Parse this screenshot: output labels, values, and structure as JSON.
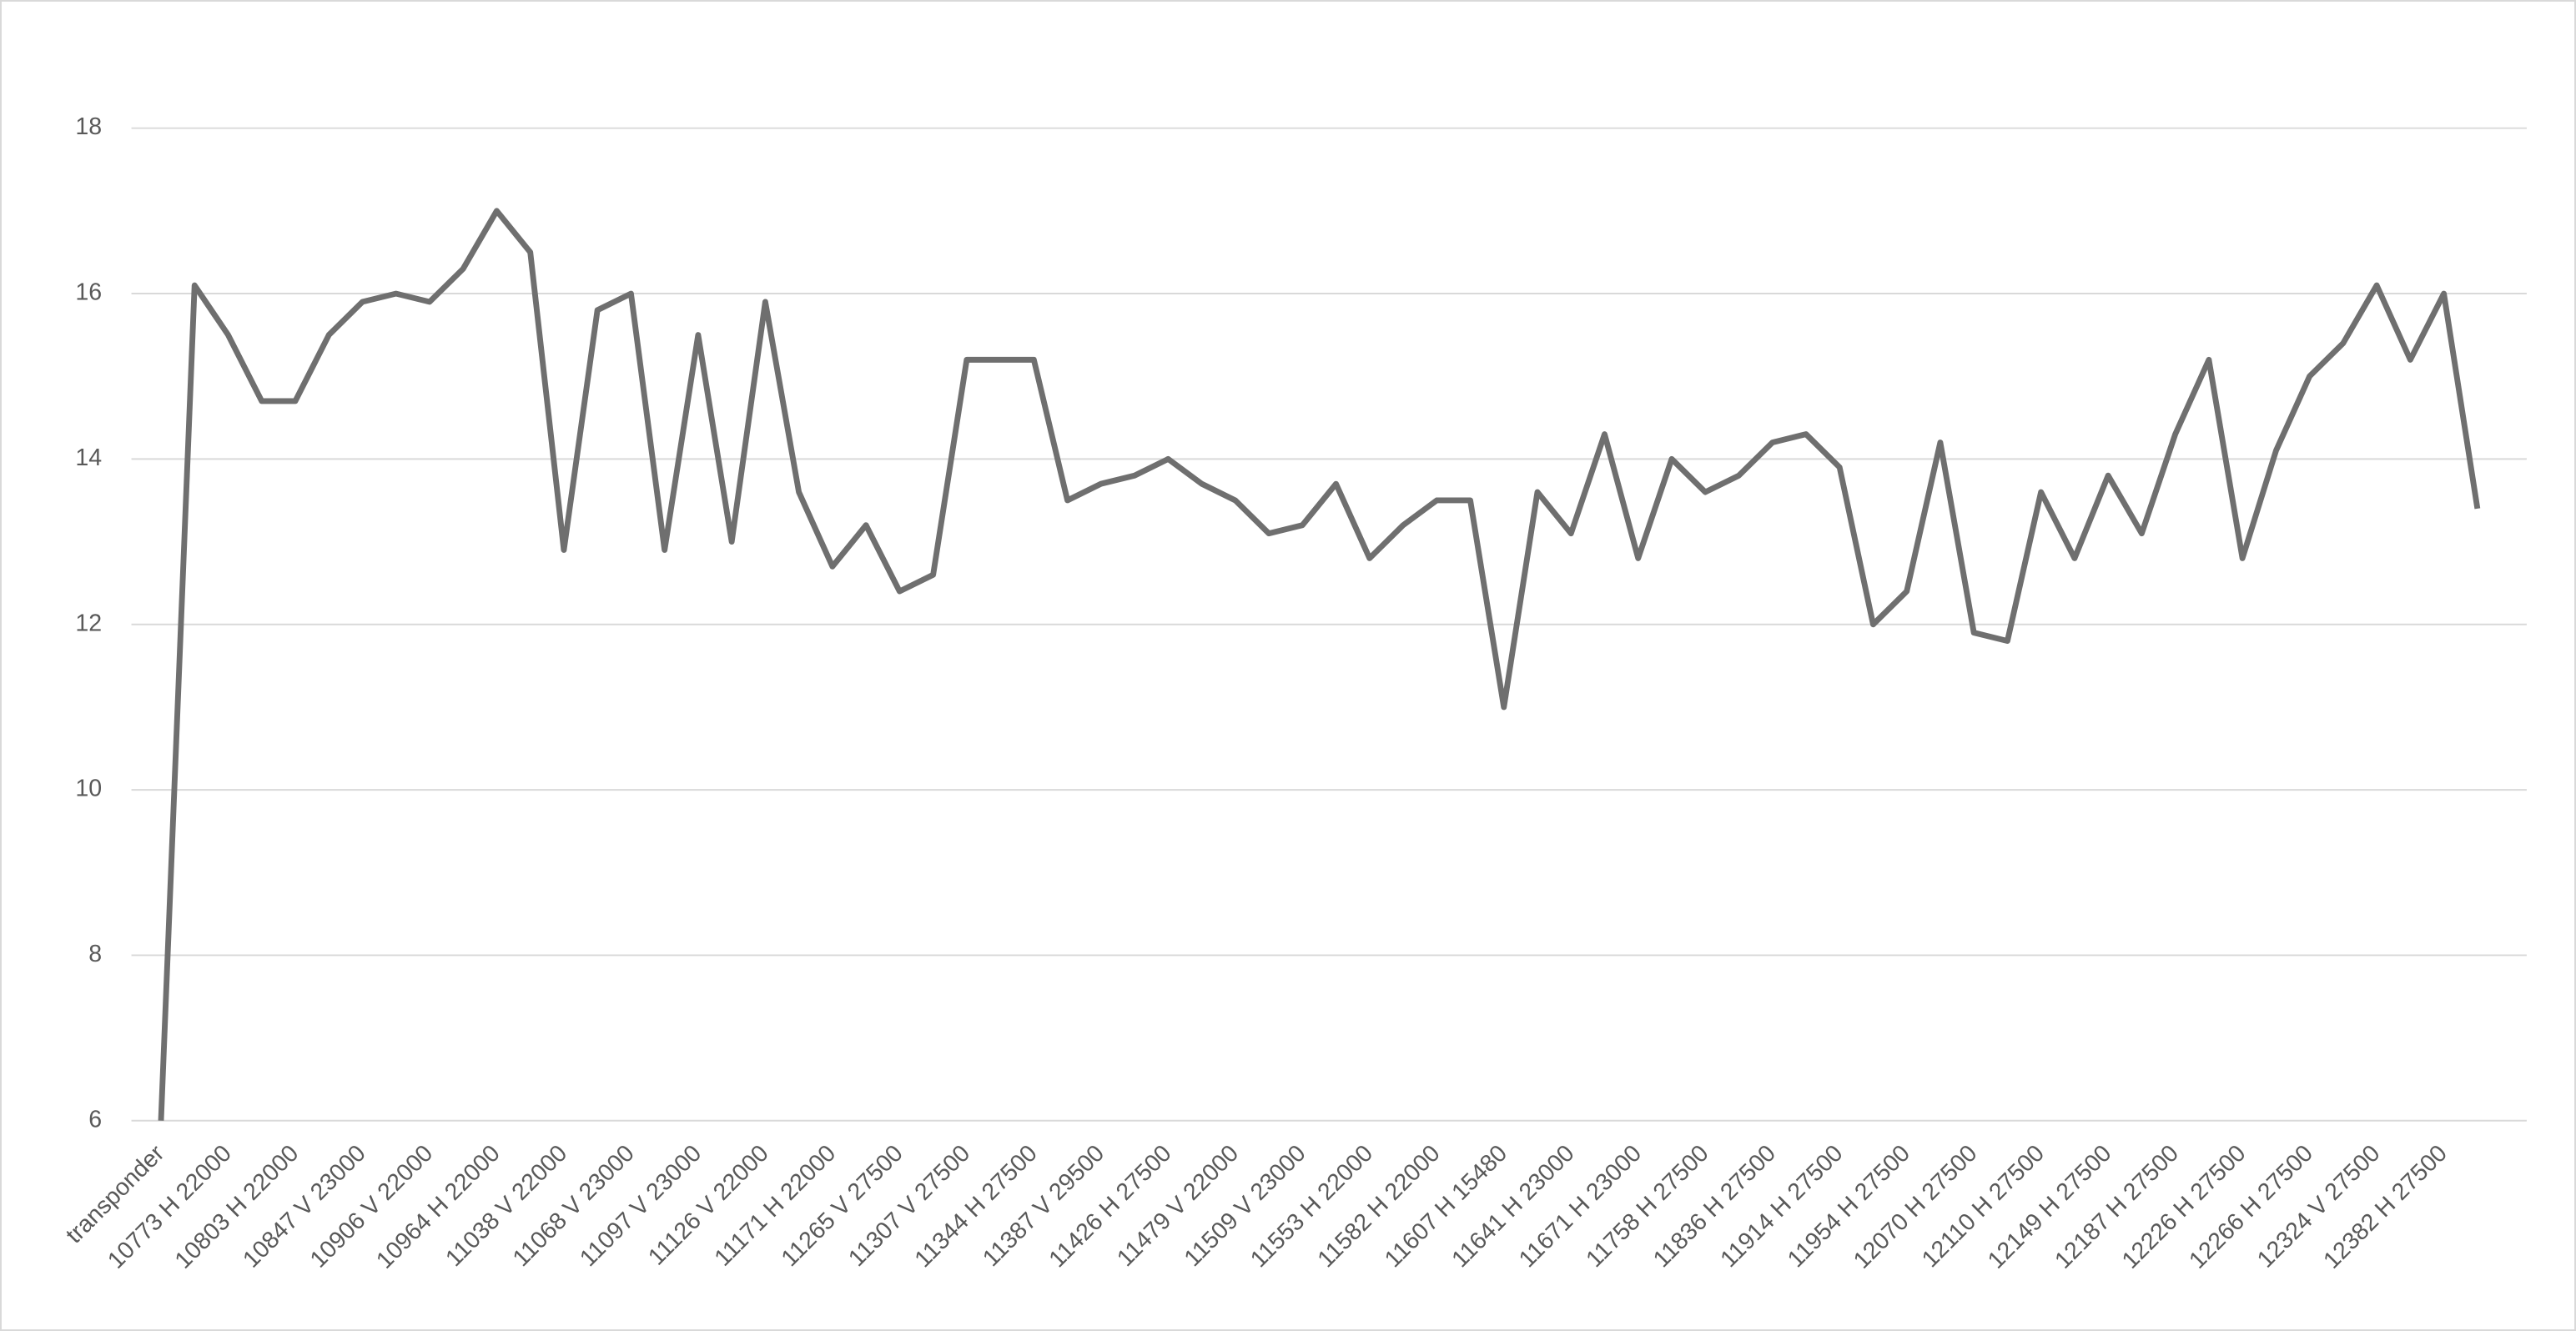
{
  "chart_data": {
    "type": "line",
    "categories": [
      "transponder",
      null,
      "10773 H  22000",
      null,
      "10803 H  22000",
      null,
      "10847 V 23000",
      null,
      "10906 V 22000",
      null,
      "10964 H  22000",
      null,
      "11038 V 22000",
      null,
      "11068 V 23000",
      null,
      "11097 V 23000",
      null,
      "11126 V 22000",
      null,
      "11171 H  22000",
      null,
      "11265 V 27500",
      null,
      "11307 V 27500",
      null,
      "11344 H  27500",
      null,
      "11387 V 29500",
      null,
      "11426 H  27500",
      null,
      "11479 V 22000",
      null,
      "11509 V 23000",
      null,
      "11553 H  22000",
      null,
      "11582 H  22000",
      null,
      "11607 H  15480",
      null,
      "11641 H  23000",
      null,
      "11671 H  23000",
      null,
      "11758 H  27500",
      null,
      "11836 H  27500",
      null,
      "11914 H  27500",
      null,
      "11954 H  27500",
      null,
      "12070 H  27500",
      null,
      "12110 H  27500",
      null,
      "12149 H  27500",
      null,
      "12187 H  27500",
      null,
      "12226 H  27500",
      null,
      "12266 H  27500",
      null,
      "12324 V 27500",
      null,
      "12382 H  27500",
      null
    ],
    "values": [
      6,
      16.1,
      15.5,
      14.7,
      14.7,
      15.5,
      15.9,
      16.0,
      15.9,
      16.3,
      17.0,
      16.5,
      12.9,
      15.8,
      16.0,
      12.9,
      15.5,
      13.0,
      15.9,
      13.6,
      12.7,
      13.2,
      12.4,
      12.6,
      15.2,
      15.2,
      15.2,
      13.5,
      13.7,
      13.8,
      14.0,
      13.7,
      13.5,
      13.1,
      13.2,
      13.7,
      12.8,
      13.2,
      13.5,
      13.5,
      11.0,
      13.6,
      13.1,
      14.3,
      12.8,
      14.0,
      13.6,
      13.8,
      14.2,
      14.3,
      13.9,
      12.0,
      12.4,
      14.2,
      11.9,
      11.8,
      13.6,
      12.8,
      13.8,
      13.1,
      14.3,
      15.2,
      12.8,
      14.1,
      15.0,
      15.4,
      16.1,
      15.2,
      16.0,
      13.4
    ],
    "color": "#6f6f6f",
    "ylim": [
      6,
      18
    ],
    "yticks": [
      6,
      8,
      10,
      12,
      14,
      16,
      18
    ],
    "grid": true
  }
}
